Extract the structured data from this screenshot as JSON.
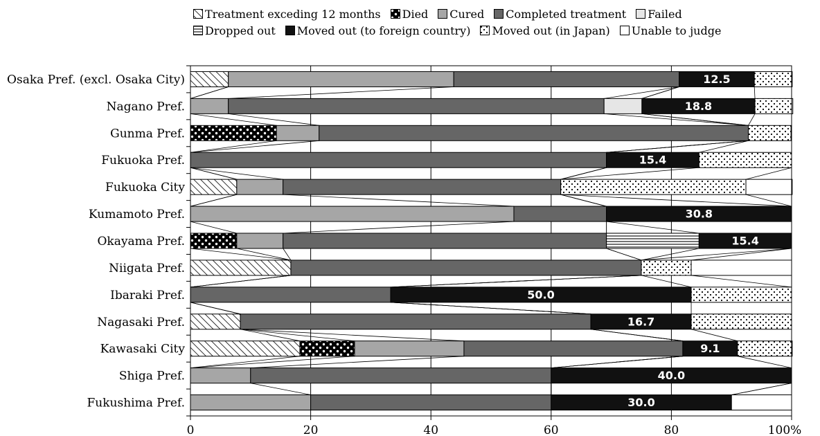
{
  "chart_data": {
    "type": "bar",
    "stacked": true,
    "orientation": "horizontal",
    "percent": true,
    "xlim": [
      0,
      100
    ],
    "x_ticks": [
      "0",
      "20",
      "40",
      "60",
      "80",
      "100%"
    ],
    "grid": "vertical",
    "legend_position": "top",
    "categories": [
      "Osaka Pref. (excl. Osaka City)",
      "Nagano Pref.",
      "Gunma Pref.",
      "Fukuoka Pref.",
      "Fukuoka City",
      "Kumamoto Pref.",
      "Okayama Pref.",
      "Niigata Pref.",
      "Ibaraki Pref.",
      "Nagasaki Pref.",
      "Kawasaki City",
      "Shiga Pref.",
      "Fukushima Pref."
    ],
    "series": [
      {
        "name": "Treatment exceding 12 months",
        "pattern": "diagonal",
        "color": "#ffffff",
        "values": [
          6.3,
          0,
          0,
          0,
          7.7,
          0,
          0,
          16.7,
          0,
          8.3,
          18.2,
          0,
          0
        ]
      },
      {
        "name": "Died",
        "pattern": "dots",
        "color": "#000000",
        "values": [
          0,
          0,
          14.3,
          0,
          0,
          0,
          7.7,
          0,
          0,
          0,
          9.1,
          0,
          0
        ]
      },
      {
        "name": "Cured",
        "pattern": "solid",
        "color": "#a6a6a6",
        "values": [
          37.5,
          6.3,
          7.1,
          0,
          7.7,
          53.8,
          7.7,
          0,
          0,
          0,
          18.2,
          10.0,
          20.0
        ]
      },
      {
        "name": "Completed treatment",
        "pattern": "solid",
        "color": "#666666",
        "values": [
          37.5,
          62.5,
          71.4,
          69.2,
          46.2,
          15.4,
          53.8,
          58.3,
          33.3,
          58.3,
          36.4,
          50.0,
          40.0
        ]
      },
      {
        "name": "Failed",
        "pattern": "solid",
        "color": "#e6e6e6",
        "values": [
          0,
          6.3,
          0,
          0,
          0,
          0,
          0,
          0,
          0,
          0,
          0,
          0,
          0
        ]
      },
      {
        "name": "Dropped out",
        "pattern": "horizontal",
        "color": "#ffffff",
        "values": [
          0,
          0,
          0,
          0,
          0,
          0,
          15.4,
          0,
          0,
          0,
          0,
          0,
          0
        ]
      },
      {
        "name": "Moved out (to foreign country)",
        "pattern": "solid",
        "color": "#111111",
        "values": [
          12.5,
          18.8,
          0,
          15.4,
          0,
          30.8,
          15.4,
          0,
          50.0,
          16.7,
          9.1,
          40.0,
          30.0
        ]
      },
      {
        "name": "Moved out (in Japan)",
        "pattern": "sparse-dots",
        "color": "#ffffff",
        "values": [
          6.3,
          6.3,
          7.1,
          15.4,
          30.8,
          0,
          0,
          8.3,
          16.7,
          16.7,
          9.1,
          0,
          0
        ]
      },
      {
        "name": "Unable to judge",
        "pattern": "solid",
        "color": "#ffffff",
        "values": [
          0,
          0,
          0,
          0,
          7.7,
          0,
          0,
          16.7,
          0,
          0,
          0,
          0,
          10.0
        ]
      }
    ],
    "data_labels": [
      {
        "category": "Osaka Pref. (excl. Osaka City)",
        "series": "Moved out (to foreign country)",
        "text": "12.5"
      },
      {
        "category": "Nagano Pref.",
        "series": "Moved out (to foreign country)",
        "text": "18.8"
      },
      {
        "category": "Fukuoka Pref.",
        "series": "Moved out (to foreign country)",
        "text": "15.4"
      },
      {
        "category": "Kumamoto Pref.",
        "series": "Moved out (to foreign country)",
        "text": "30.8"
      },
      {
        "category": "Okayama Pref.",
        "series": "Moved out (to foreign country)",
        "text": "15.4"
      },
      {
        "category": "Ibaraki Pref.",
        "series": "Moved out (to foreign country)",
        "text": "50.0"
      },
      {
        "category": "Nagasaki Pref.",
        "series": "Moved out (to foreign country)",
        "text": "16.7"
      },
      {
        "category": "Kawasaki City",
        "series": "Moved out (to foreign country)",
        "text": "9.1"
      },
      {
        "category": "Shiga Pref.",
        "series": "Moved out (to foreign country)",
        "text": "40.0"
      },
      {
        "category": "Fukushima Pref.",
        "series": "Moved out (to foreign country)",
        "text": "30.0"
      }
    ]
  }
}
